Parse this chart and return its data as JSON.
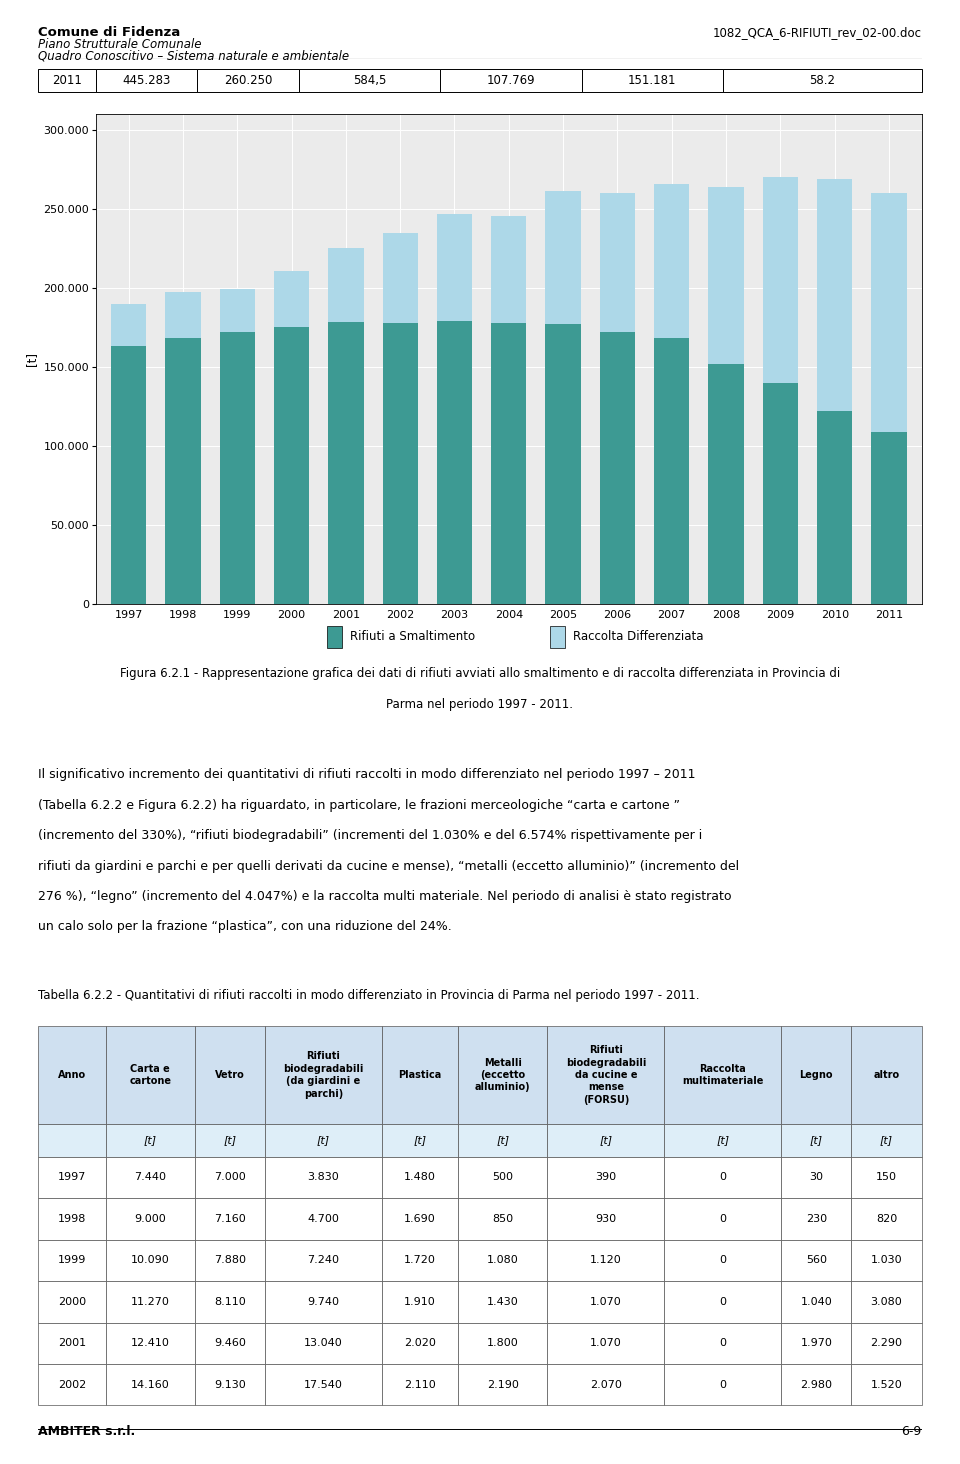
{
  "header_left_bold": "Comune di Fidenza",
  "header_left_line2": "Piano Strutturale Comunale",
  "header_left_line3": "Quadro Conoscitivo – Sistema naturale e ambientale",
  "header_right": "1082_QCA_6-RIFIUTI_rev_02-00.doc",
  "top_table_row": [
    "2011",
    "445.283",
    "260.250",
    "584,5",
    "107.769",
    "151.181",
    "58.2"
  ],
  "top_col_widths": [
    0.065,
    0.115,
    0.115,
    0.16,
    0.16,
    0.16,
    0.225
  ],
  "years": [
    1997,
    1998,
    1999,
    2000,
    2001,
    2002,
    2003,
    2004,
    2005,
    2006,
    2007,
    2008,
    2009,
    2010,
    2011
  ],
  "smaltimento": [
    163000,
    168500,
    172000,
    175500,
    178500,
    178000,
    179000,
    177500,
    177000,
    172000,
    168500,
    152000,
    140000,
    122000,
    109000
  ],
  "differenziata": [
    27000,
    29000,
    27000,
    35000,
    47000,
    57000,
    68000,
    68000,
    84000,
    88000,
    97000,
    112000,
    130000,
    147000,
    151000
  ],
  "color_smaltimento": "#3D9A93",
  "color_differenziata": "#ADD8E8",
  "ylabel": "[t]",
  "yticks": [
    0,
    50000,
    100000,
    150000,
    200000,
    250000,
    300000
  ],
  "ytick_labels": [
    "0",
    "50.000",
    "100.000",
    "150.000",
    "200.000",
    "250.000",
    "300.000"
  ],
  "ylim": [
    0,
    310000
  ],
  "legend_smaltimento": "Rifiuti a Smaltimento",
  "legend_differenziata": "Raccolta Differenziata",
  "figure_caption_line1": "Figura 6.2.1 - Rappresentazione grafica dei dati di rifiuti avviati allo smaltimento e di raccolta differenziata in Provincia di",
  "figure_caption_line2": "Parma nel periodo 1997 - 2011.",
  "paragraph_text": "Il significativo incremento dei quantitativi di rifiuti raccolti in modo differenziato nel periodo 1997 – 2011\n(Tabella 6.2.2 e Figura 6.2.2) ha riguardato, in particolare, le frazioni merceologiche “carta e cartone ”\n(incremento del 330%), “rifiuti biodegradabili” (incrementi del 1.030% e del 6.574% rispettivamente per i\nrifiuti da giardini e parchi e per quelli derivati da cucine e mense), “metalli (eccetto alluminio)” (incremento del\n276 %), “legno” (incremento del 4.047%) e la raccolta multi materiale. Nel periodo di analisi è stato registrato\nun calo solo per la frazione “plastica”, con una riduzione del 24%.",
  "table_caption": "Tabella 6.2.2 - Quantitativi di rifiuti raccolti in modo differenziato in Provincia di Parma nel periodo 1997 - 2011.",
  "table_col_widths": [
    0.072,
    0.095,
    0.075,
    0.125,
    0.082,
    0.095,
    0.125,
    0.125,
    0.075,
    0.075
  ],
  "table_headers_row1": [
    "Anno",
    "Carta e\ncartone",
    "Vetro",
    "Rifiuti\nbiodegradabili\n(da giardini e\nparchi)",
    "Plastica",
    "Metalli\n(eccetto\nalluminio)",
    "Rifiuti\nbiodegradabili\nda cucine e\nmense\n(FORSU)",
    "Raccolta\nmultimateriale",
    "Legno",
    "altro"
  ],
  "table_headers_row2": [
    "",
    "[t]",
    "[t]",
    "[t]",
    "[t]",
    "[t]",
    "[t]",
    "[t]",
    "[t]",
    "[t]"
  ],
  "table_data": [
    [
      "1997",
      "7.440",
      "7.000",
      "3.830",
      "1.480",
      "500",
      "390",
      "0",
      "30",
      "150"
    ],
    [
      "1998",
      "9.000",
      "7.160",
      "4.700",
      "1.690",
      "850",
      "930",
      "0",
      "230",
      "820"
    ],
    [
      "1999",
      "10.090",
      "7.880",
      "7.240",
      "1.720",
      "1.080",
      "1.120",
      "0",
      "560",
      "1.030"
    ],
    [
      "2000",
      "11.270",
      "8.110",
      "9.740",
      "1.910",
      "1.430",
      "1.070",
      "0",
      "1.040",
      "3.080"
    ],
    [
      "2001",
      "12.410",
      "9.460",
      "13.040",
      "2.020",
      "1.800",
      "1.070",
      "0",
      "1.970",
      "2.290"
    ],
    [
      "2002",
      "14.160",
      "9.130",
      "17.540",
      "2.110",
      "2.190",
      "2.070",
      "0",
      "2.980",
      "1.520"
    ]
  ],
  "footer_left": "AMBITER s.r.l.",
  "footer_right": "6-9",
  "bg_color": "#ffffff",
  "chart_bg": "#ebebeb",
  "grid_color": "#ffffff",
  "table_header_bg": "#cfe0f0",
  "table_subheader_bg": "#deeef8",
  "table_row_bg": "#ffffff"
}
